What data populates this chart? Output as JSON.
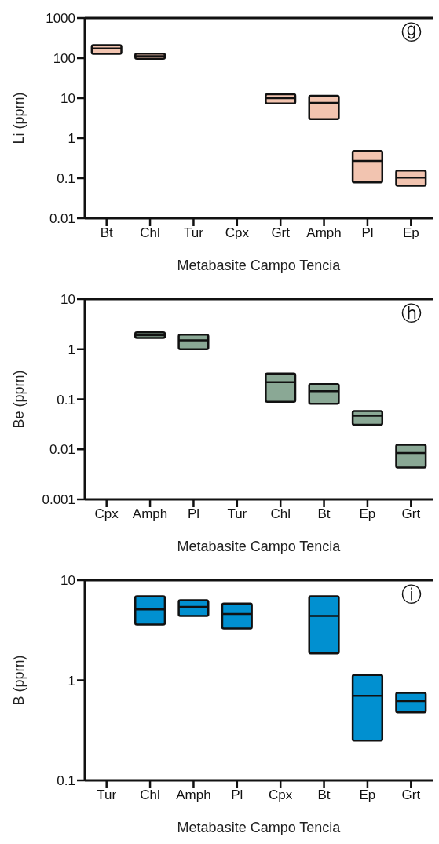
{
  "chart_data": [
    {
      "type": "box",
      "color": "#f2c4b0",
      "ylabel": "Li (ppm)",
      "xlabel": "Metabasite Campo Tencia",
      "log": true,
      "ylim": [
        0.01,
        1000
      ],
      "yticks": [
        0.01,
        0.1,
        1,
        10,
        100,
        1000
      ],
      "annotations": [
        "ⓖ"
      ],
      "categories": [
        "Bt",
        "Chl",
        "Tur",
        "Cpx",
        "Grt",
        "Amph",
        "Pl",
        "Ep"
      ],
      "boxes": [
        {
          "low": 128,
          "q1": 128,
          "median": 174,
          "q3": 210,
          "high": 210
        },
        {
          "low": 97,
          "q1": 97,
          "median": 112,
          "q3": 130,
          "high": 130
        },
        null,
        null,
        {
          "low": 7.4,
          "q1": 7.4,
          "median": 10,
          "q3": 12.5,
          "high": 12.5
        },
        {
          "low": 3,
          "q1": 3,
          "median": 7.6,
          "q3": 11.5,
          "high": 11.5
        },
        {
          "low": 0.079,
          "q1": 0.079,
          "median": 0.27,
          "q3": 0.48,
          "high": 0.48
        },
        {
          "low": 0.065,
          "q1": 0.065,
          "median": 0.104,
          "q3": 0.155,
          "high": 0.155
        }
      ]
    },
    {
      "type": "box",
      "color": "#8aa895",
      "ylabel": "Be (ppm)",
      "xlabel": "Metabasite Campo Tencia",
      "log": true,
      "ylim": [
        0.001,
        10
      ],
      "yticks": [
        0.001,
        0.01,
        0.1,
        1,
        10
      ],
      "annotations": [
        "ⓗ"
      ],
      "categories": [
        "Cpx",
        "Amph",
        "Pl",
        "Tur",
        "Chl",
        "Bt",
        "Ep",
        "Grt"
      ],
      "boxes": [
        null,
        {
          "low": 1.68,
          "q1": 1.68,
          "median": 1.9,
          "q3": 2.17,
          "high": 2.17
        },
        {
          "low": 1,
          "q1": 1,
          "median": 1.5,
          "q3": 1.95,
          "high": 1.95
        },
        null,
        {
          "low": 0.089,
          "q1": 0.089,
          "median": 0.22,
          "q3": 0.326,
          "high": 0.326
        },
        {
          "low": 0.081,
          "q1": 0.081,
          "median": 0.145,
          "q3": 0.2,
          "high": 0.2
        },
        {
          "low": 0.031,
          "q1": 0.031,
          "median": 0.047,
          "q3": 0.058,
          "high": 0.058
        },
        {
          "low": 0.0043,
          "q1": 0.0043,
          "median": 0.0084,
          "q3": 0.0123,
          "high": 0.0123
        }
      ]
    },
    {
      "type": "box",
      "color": "#0190d0",
      "ylabel": "B (ppm)",
      "xlabel": "Metabasite Campo Tencia",
      "log": true,
      "ylim": [
        0.1,
        10
      ],
      "yticks": [
        0.1,
        1,
        10
      ],
      "annotations": [
        "ⓘ"
      ],
      "categories": [
        "Tur",
        "Chl",
        "Amph",
        "Pl",
        "Cpx",
        "Bt",
        "Ep",
        "Grt"
      ],
      "boxes": [
        null,
        {
          "low": 3.6,
          "q1": 3.6,
          "median": 5.1,
          "q3": 6.9,
          "high": 6.9
        },
        {
          "low": 4.4,
          "q1": 4.4,
          "median": 5.4,
          "q3": 6.3,
          "high": 6.3
        },
        {
          "low": 3.3,
          "q1": 3.3,
          "median": 4.6,
          "q3": 5.85,
          "high": 5.85
        },
        null,
        {
          "low": 1.86,
          "q1": 1.86,
          "median": 4.4,
          "q3": 6.9,
          "high": 6.9
        },
        {
          "low": 0.25,
          "q1": 0.25,
          "median": 0.7,
          "q3": 1.13,
          "high": 1.13
        },
        {
          "low": 0.48,
          "q1": 0.48,
          "median": 0.62,
          "q3": 0.75,
          "high": 0.75
        }
      ]
    }
  ]
}
